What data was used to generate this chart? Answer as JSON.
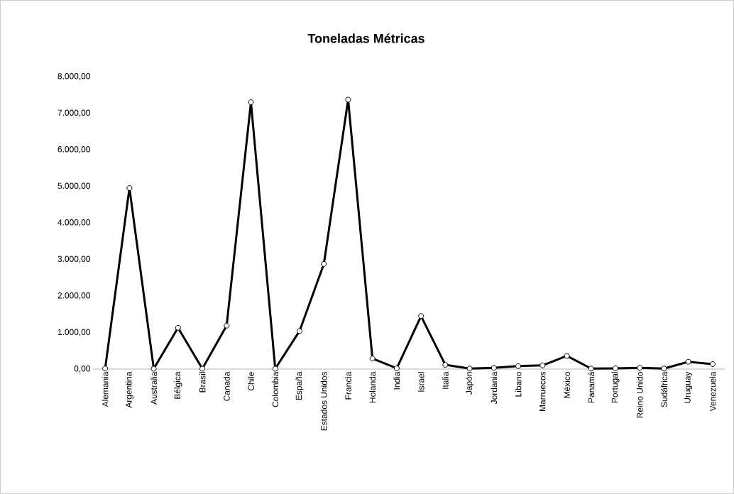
{
  "chart_data": {
    "type": "line",
    "title": "Toneladas Métricas",
    "categories": [
      "Alemania",
      "Argentina",
      "Australia",
      "Bélgica",
      "Brasil",
      "Canada",
      "Chile",
      "Colombia",
      "España",
      "Estados Unidos",
      "Francia",
      "Holanda",
      "India",
      "Israel",
      "Italia",
      "Japón",
      "Jordania",
      "Libano",
      "Marruecos",
      "México",
      "Panamá",
      "Portugal",
      "Reino Unido",
      "Sudáfrica",
      "Uruguay",
      "Venezuela"
    ],
    "series": [
      {
        "color": "#000000",
        "values": [
          15,
          4950,
          10,
          1130,
          10,
          1190,
          7300,
          10,
          1040,
          2875,
          7370,
          290,
          20,
          1450,
          115,
          15,
          35,
          80,
          100,
          360,
          15,
          20,
          35,
          15,
          200,
          135
        ]
      }
    ],
    "ylim": [
      0,
      8000
    ],
    "yticks": [
      {
        "value": 0,
        "label": "0,00"
      },
      {
        "value": 1000,
        "label": "1.000,00"
      },
      {
        "value": 2000,
        "label": "2.000,00"
      },
      {
        "value": 3000,
        "label": "3.000,00"
      },
      {
        "value": 4000,
        "label": "4.000,00"
      },
      {
        "value": 5000,
        "label": "5.000,00"
      },
      {
        "value": 6000,
        "label": "6.000,00"
      },
      {
        "value": 7000,
        "label": "7.000,00"
      },
      {
        "value": 8000,
        "label": "8.000,00"
      }
    ],
    "grid": false,
    "marker": "circle",
    "line_style": "solid"
  }
}
